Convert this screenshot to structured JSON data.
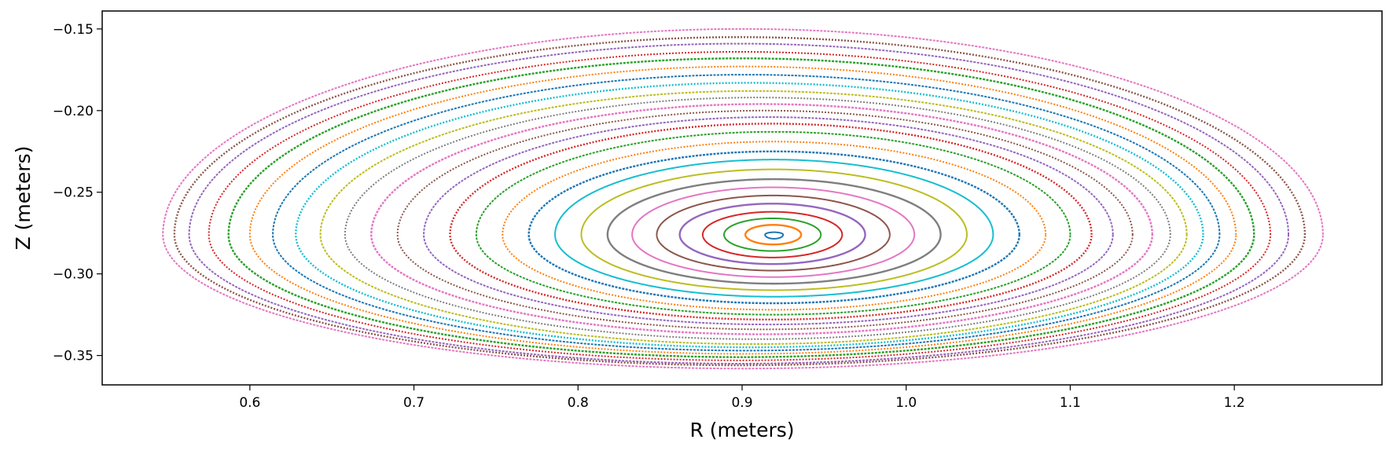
{
  "chart_data": {
    "type": "scatter",
    "title": "",
    "xlabel": "R (meters)",
    "ylabel": "Z (meters)",
    "xlim": [
      0.51,
      1.29
    ],
    "ylim": [
      -0.368,
      -0.139
    ],
    "xticks": [
      0.6,
      0.7,
      0.8,
      0.9,
      1.0,
      1.1,
      1.2
    ],
    "xtick_labels": [
      "0.6",
      "0.7",
      "0.8",
      "0.9",
      "1.0",
      "1.1",
      "1.2"
    ],
    "yticks": [
      -0.15,
      -0.2,
      -0.25,
      -0.3,
      -0.35
    ],
    "ytick_labels": [
      "−0.15",
      "−0.20",
      "−0.25",
      "−0.30",
      "−0.35"
    ],
    "grid": false,
    "legend": false,
    "magnetic_axis": [
      0.917,
      -0.276
    ],
    "colors": [
      "#1f77b4",
      "#ff7f0e",
      "#2ca02c",
      "#d62728",
      "#9467bd",
      "#8c564b",
      "#e377c2",
      "#7f7f7f",
      "#bcbd22",
      "#17becf"
    ],
    "series": [
      {
        "left": 0.914,
        "right": 0.925,
        "top": -0.2745,
        "bottom": -0.2785
      },
      {
        "left": 0.902,
        "right": 0.936,
        "top": -0.27,
        "bottom": -0.282
      },
      {
        "left": 0.889,
        "right": 0.948,
        "top": -0.266,
        "bottom": -0.286
      },
      {
        "left": 0.876,
        "right": 0.961,
        "top": -0.262,
        "bottom": -0.29
      },
      {
        "left": 0.862,
        "right": 0.975,
        "top": -0.257,
        "bottom": -0.294
      },
      {
        "left": 0.848,
        "right": 0.99,
        "top": -0.252,
        "bottom": -0.298
      },
      {
        "left": 0.833,
        "right": 1.005,
        "top": -0.247,
        "bottom": -0.302
      },
      {
        "left": 0.818,
        "right": 1.021,
        "top": -0.242,
        "bottom": -0.306
      },
      {
        "left": 0.802,
        "right": 1.037,
        "top": -0.236,
        "bottom": -0.31
      },
      {
        "left": 0.786,
        "right": 1.053,
        "top": -0.23,
        "bottom": -0.314
      },
      {
        "left": 0.77,
        "right": 1.069,
        "top": -0.225,
        "bottom": -0.318
      },
      {
        "left": 0.754,
        "right": 1.085,
        "top": -0.219,
        "bottom": -0.322
      },
      {
        "left": 0.738,
        "right": 1.1,
        "top": -0.213,
        "bottom": -0.325
      },
      {
        "left": 0.722,
        "right": 1.113,
        "top": -0.208,
        "bottom": -0.328
      },
      {
        "left": 0.706,
        "right": 1.126,
        "top": -0.204,
        "bottom": -0.331
      },
      {
        "left": 0.69,
        "right": 1.138,
        "top": -0.2,
        "bottom": -0.334
      },
      {
        "left": 0.674,
        "right": 1.15,
        "top": -0.196,
        "bottom": -0.337
      },
      {
        "left": 0.658,
        "right": 1.161,
        "top": -0.192,
        "bottom": -0.34
      },
      {
        "left": 0.643,
        "right": 1.171,
        "top": -0.188,
        "bottom": -0.343
      },
      {
        "left": 0.628,
        "right": 1.181,
        "top": -0.183,
        "bottom": -0.345
      },
      {
        "left": 0.614,
        "right": 1.191,
        "top": -0.178,
        "bottom": -0.347
      },
      {
        "left": 0.6,
        "right": 1.201,
        "top": -0.173,
        "bottom": -0.349
      },
      {
        "left": 0.587,
        "right": 1.212,
        "top": -0.168,
        "bottom": -0.351
      },
      {
        "left": 0.575,
        "right": 1.222,
        "top": -0.164,
        "bottom": -0.353
      },
      {
        "left": 0.563,
        "right": 1.233,
        "top": -0.159,
        "bottom": -0.355
      },
      {
        "left": 0.554,
        "right": 1.243,
        "top": -0.155,
        "bottom": -0.356
      },
      {
        "left": 0.547,
        "right": 1.254,
        "top": -0.15,
        "bottom": -0.358
      }
    ]
  }
}
